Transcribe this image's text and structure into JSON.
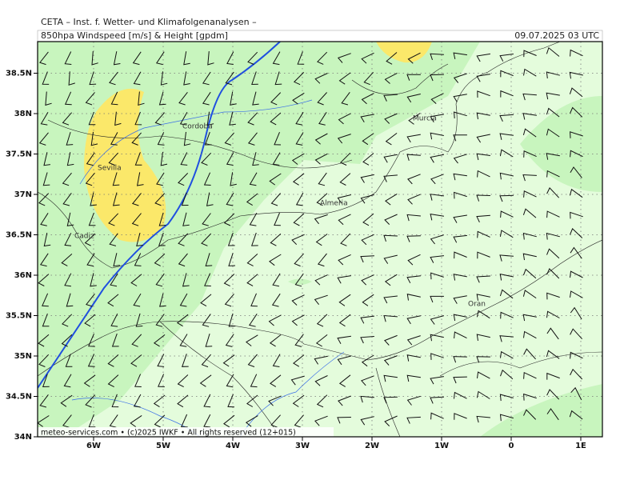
{
  "header": {
    "title": "CETA – Inst. f. Wetter- und Klimafolgenanalysen –",
    "subtitle": "850hpa Windspeed [m/s] & Height [gpdm]",
    "date": "09.07.2025 03 UTC"
  },
  "lat_labels": [
    "34N",
    "34.5N",
    "35N",
    "35.5N",
    "36N",
    "36.5N",
    "37N",
    "37.5N",
    "38N",
    "38.5N"
  ],
  "lon_labels": [
    "6W",
    "5W",
    "4W",
    "3W",
    "2W",
    "1W",
    "0",
    "1E"
  ],
  "cities": [
    "Sevilla",
    "Cordoba",
    "Cadiz",
    "Almeria",
    "Murcia",
    "Oran"
  ],
  "footer": "meteo-services.com • (c)2025 IWKF • All rights reserved (12+015)"
}
